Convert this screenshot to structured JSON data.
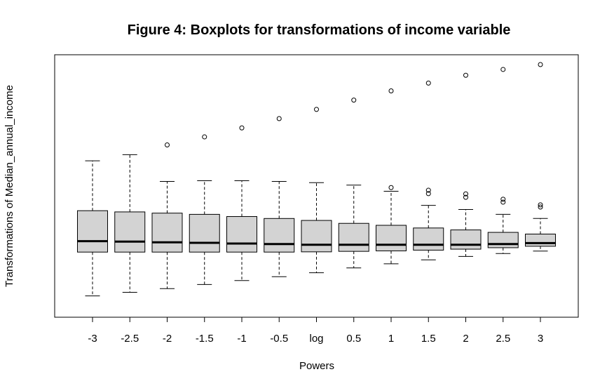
{
  "chart_data": {
    "type": "boxplot",
    "title": "Figure 4: Boxplots for transformations of income variable",
    "xlabel": "Powers",
    "ylabel": "Transformations of Median_annual_income",
    "y_tick_labels_shown": false,
    "ylim": [
      0,
      100
    ],
    "grid": false,
    "legend": "none",
    "box_fill": "#d3d3d3",
    "categories": [
      "-3",
      "-2.5",
      "-2",
      "-1.5",
      "-1",
      "-0.5",
      "log",
      "0.5",
      "1",
      "1.5",
      "2",
      "2.5",
      "3"
    ],
    "boxes": [
      {
        "label": "-3",
        "whisker_low": 5.0,
        "q1": 23.0,
        "median": 27.5,
        "q3": 40.0,
        "whisker_high": 60.5,
        "outliers": []
      },
      {
        "label": "-2.5",
        "whisker_low": 6.5,
        "q1": 23.0,
        "median": 27.3,
        "q3": 39.5,
        "whisker_high": 63.0,
        "outliers": []
      },
      {
        "label": "-2",
        "whisker_low": 8.0,
        "q1": 23.0,
        "median": 27.0,
        "q3": 39.0,
        "whisker_high": 52.0,
        "outliers": [
          67.0
        ]
      },
      {
        "label": "-1.5",
        "whisker_low": 9.7,
        "q1": 23.0,
        "median": 26.8,
        "q3": 38.5,
        "whisker_high": 52.3,
        "outliers": [
          70.3
        ]
      },
      {
        "label": "-1",
        "whisker_low": 11.3,
        "q1": 23.0,
        "median": 26.5,
        "q3": 37.6,
        "whisker_high": 52.3,
        "outliers": [
          74.0
        ]
      },
      {
        "label": "-0.5",
        "whisker_low": 12.9,
        "q1": 23.0,
        "median": 26.3,
        "q3": 36.8,
        "whisker_high": 52.0,
        "outliers": [
          77.8
        ]
      },
      {
        "label": "log",
        "whisker_low": 14.5,
        "q1": 23.1,
        "median": 26.0,
        "q3": 36.0,
        "whisker_high": 51.5,
        "outliers": [
          81.6
        ]
      },
      {
        "label": "0.5",
        "whisker_low": 16.5,
        "q1": 23.3,
        "median": 26.0,
        "q3": 34.8,
        "whisker_high": 50.5,
        "outliers": [
          85.4
        ]
      },
      {
        "label": "1",
        "whisker_low": 18.2,
        "q1": 23.5,
        "median": 26.0,
        "q3": 34.0,
        "whisker_high": 48.0,
        "outliers": [
          49.5,
          89.2
        ]
      },
      {
        "label": "1.5",
        "whisker_low": 19.8,
        "q1": 23.8,
        "median": 26.0,
        "q3": 32.9,
        "whisker_high": 42.2,
        "outliers": [
          47.0,
          48.4,
          92.4
        ]
      },
      {
        "label": "2",
        "whisker_low": 21.2,
        "q1": 24.2,
        "median": 26.0,
        "q3": 32.1,
        "whisker_high": 40.5,
        "outliers": [
          45.5,
          46.9,
          95.6
        ]
      },
      {
        "label": "2.5",
        "whisker_low": 22.4,
        "q1": 24.8,
        "median": 26.3,
        "q3": 31.1,
        "whisker_high": 38.5,
        "outliers": [
          43.5,
          44.7,
          98.0
        ]
      },
      {
        "label": "3",
        "whisker_low": 23.4,
        "q1": 25.4,
        "median": 26.7,
        "q3": 30.4,
        "whisker_high": 36.8,
        "outliers": [
          41.5,
          42.4,
          100.0
        ]
      }
    ]
  }
}
